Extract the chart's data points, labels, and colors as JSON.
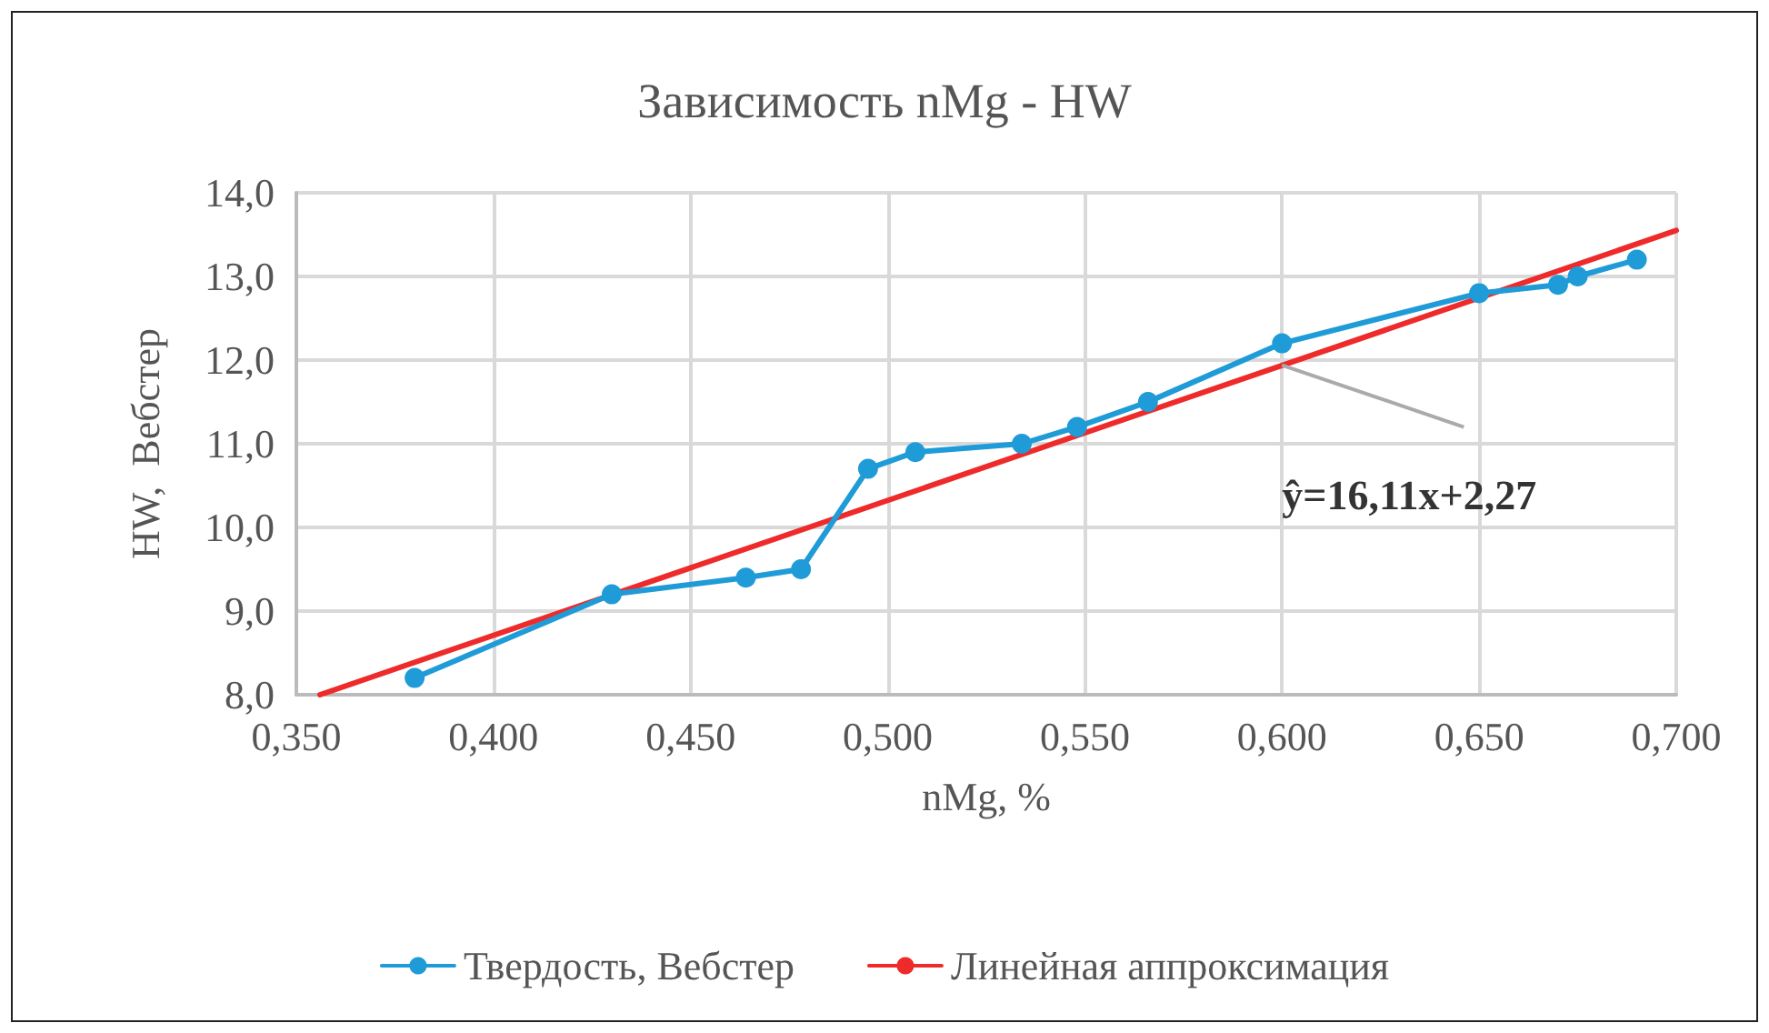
{
  "chart_data": {
    "type": "line",
    "title": "Зависимость nMg - HW",
    "xlabel": "nMg, %",
    "ylabel": "HW,  Вебстер",
    "series": [
      {
        "name": "Твердость, Вебстер",
        "color": "#1f9bd7",
        "marker": "circle",
        "x": [
          0.38,
          0.43,
          0.464,
          0.478,
          0.495,
          0.507,
          0.534,
          0.548,
          0.566,
          0.6,
          0.65,
          0.67,
          0.675,
          0.69
        ],
        "values": [
          8.2,
          9.2,
          9.4,
          9.5,
          10.7,
          10.9,
          11.0,
          11.2,
          11.5,
          12.2,
          12.8,
          12.9,
          13.0,
          13.2
        ]
      },
      {
        "name": "Линейная аппроксимация",
        "color": "#ee2a2a",
        "marker": "none",
        "x": [
          0.356,
          0.7
        ],
        "values": [
          8.0,
          13.55
        ]
      }
    ],
    "annotations": [
      {
        "text": "ŷ=16,11x+2,27",
        "x": 0.6,
        "y": 11.94
      }
    ],
    "xlim": [
      0.35,
      0.7
    ],
    "xticks": [
      {
        "value": 0.35,
        "label": "0,350"
      },
      {
        "value": 0.4,
        "label": "0,400"
      },
      {
        "value": 0.45,
        "label": "0,450"
      },
      {
        "value": 0.5,
        "label": "0,500"
      },
      {
        "value": 0.55,
        "label": "0,550"
      },
      {
        "value": 0.6,
        "label": "0,600"
      },
      {
        "value": 0.65,
        "label": "0,650"
      },
      {
        "value": 0.7,
        "label": "0,700"
      }
    ],
    "ylim": [
      8,
      14
    ],
    "yticks": [
      {
        "value": 8,
        "label": "8,0"
      },
      {
        "value": 9,
        "label": "9,0"
      },
      {
        "value": 10,
        "label": "10,0"
      },
      {
        "value": 11,
        "label": "11,0"
      },
      {
        "value": 12,
        "label": "12,0"
      },
      {
        "value": 13,
        "label": "13,0"
      },
      {
        "value": 14,
        "label": "14,0"
      }
    ],
    "grid": true,
    "legend": "bottom",
    "line_style": "solid"
  }
}
